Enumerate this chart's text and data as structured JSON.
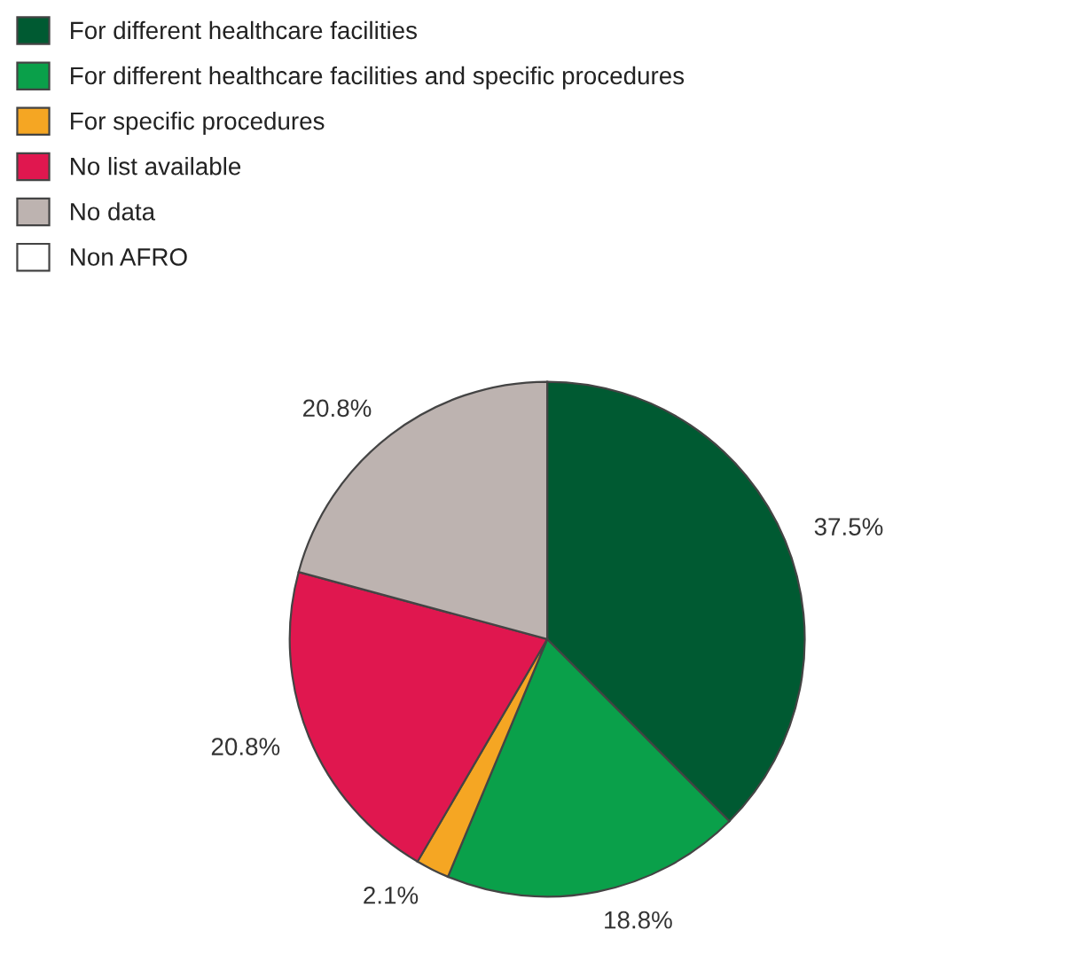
{
  "chart_data": {
    "type": "pie",
    "categories": [
      "For different healthcare facilities",
      "For different healthcare facilities and specific procedures",
      "For specific procedures",
      "No list available",
      "No data",
      "Non AFRO"
    ],
    "values": [
      37.5,
      18.8,
      2.1,
      20.8,
      20.8,
      0
    ],
    "colors": [
      "#005a32",
      "#0aa04a",
      "#f5a623",
      "#e0174f",
      "#bdb3b0",
      "#ffffff"
    ],
    "value_labels": [
      "37.5%",
      "18.8%",
      "2.1%",
      "20.8%",
      "20.8%",
      null
    ],
    "legend": "top left"
  }
}
